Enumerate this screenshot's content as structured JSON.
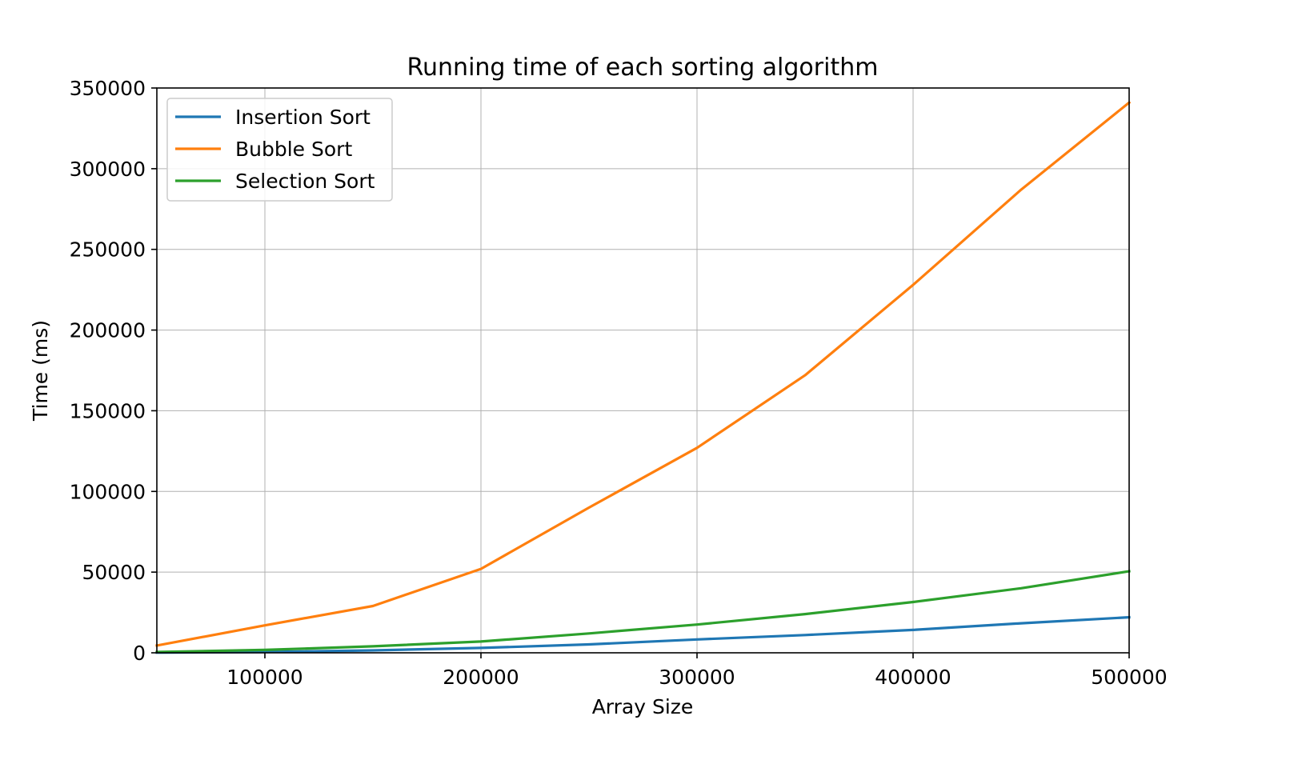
{
  "chart_data": {
    "type": "line",
    "title": "Running time of each sorting algorithm",
    "xlabel": "Array Size",
    "ylabel": "Time (ms)",
    "xlim": [
      50000,
      500000
    ],
    "ylim": [
      0,
      350000
    ],
    "xticks": [
      100000,
      200000,
      300000,
      400000,
      500000
    ],
    "yticks": [
      0,
      50000,
      100000,
      150000,
      200000,
      250000,
      300000,
      350000
    ],
    "grid": true,
    "legend_position": "top-left",
    "x": [
      50000,
      100000,
      150000,
      200000,
      250000,
      300000,
      350000,
      400000,
      450000,
      500000
    ],
    "series": [
      {
        "name": "Insertion Sort",
        "color": "#1f77b4",
        "values": [
          100,
          500,
          1500,
          3000,
          5200,
          8300,
          11000,
          14200,
          18300,
          22000
        ]
      },
      {
        "name": "Bubble Sort",
        "color": "#ff7f0e",
        "values": [
          4500,
          17000,
          29000,
          52000,
          90000,
          127000,
          172000,
          228000,
          287000,
          341000
        ]
      },
      {
        "name": "Selection Sort",
        "color": "#2ca02c",
        "values": [
          500,
          1800,
          4000,
          7000,
          12000,
          17500,
          24000,
          31500,
          40000,
          50500
        ]
      }
    ]
  }
}
